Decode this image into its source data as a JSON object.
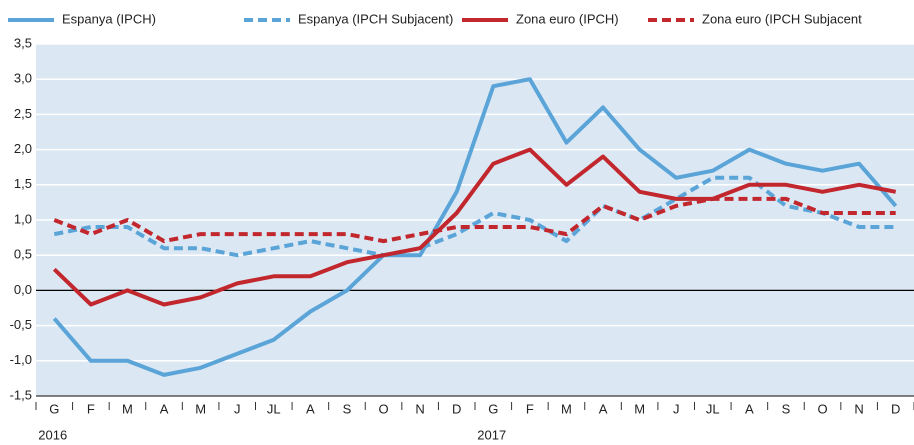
{
  "chart_data": {
    "type": "line",
    "categories": [
      "G",
      "F",
      "M",
      "A",
      "M",
      "J",
      "JL",
      "A",
      "S",
      "O",
      "N",
      "D",
      "G",
      "F",
      "M",
      "A",
      "M",
      "J",
      "JL",
      "A",
      "S",
      "O",
      "N",
      "D"
    ],
    "years": [
      "2016",
      "2017"
    ],
    "ylim": [
      -1.5,
      3.5
    ],
    "yticks": [
      {
        "value": -1.5,
        "label": "-1,5"
      },
      {
        "value": -1,
        "label": "-1,0"
      },
      {
        "value": -0.5,
        "label": "-0,5"
      },
      {
        "value": 0,
        "label": "0,0"
      },
      {
        "value": 0.5,
        "label": "0,5"
      },
      {
        "value": 1,
        "label": "1,0"
      },
      {
        "value": 1.5,
        "label": "1,5"
      },
      {
        "value": 2,
        "label": "2,0"
      },
      {
        "value": 2.5,
        "label": "2,5"
      },
      {
        "value": 3,
        "label": "3,0"
      },
      {
        "value": 3.5,
        "label": "3,5"
      }
    ],
    "grid": true,
    "series": [
      {
        "name": "Espanya (IPCH)",
        "color": "#5aa4d8",
        "line_style": "solid",
        "values": [
          -0.4,
          -1.0,
          -1.0,
          -1.2,
          -1.1,
          -0.9,
          -0.7,
          -0.3,
          0.0,
          0.5,
          0.5,
          1.4,
          2.9,
          3.0,
          2.1,
          2.6,
          2.0,
          1.6,
          1.7,
          2.0,
          1.8,
          1.7,
          1.8,
          1.2
        ]
      },
      {
        "name": "Espanya (IPCH Subjacent)",
        "color": "#5aa4d8",
        "line_style": "dashed",
        "values": [
          0.8,
          0.9,
          0.9,
          0.6,
          0.6,
          0.5,
          0.6,
          0.7,
          0.6,
          0.5,
          0.6,
          0.8,
          1.1,
          1.0,
          0.7,
          1.2,
          1.0,
          1.3,
          1.6,
          1.6,
          1.2,
          1.1,
          0.9,
          0.9
        ]
      },
      {
        "name": "Zona euro (IPCH)",
        "color": "#c1272d",
        "line_style": "solid",
        "values": [
          0.3,
          -0.2,
          0.0,
          -0.2,
          -0.1,
          0.1,
          0.2,
          0.2,
          0.4,
          0.5,
          0.6,
          1.1,
          1.8,
          2.0,
          1.5,
          1.9,
          1.4,
          1.3,
          1.3,
          1.5,
          1.5,
          1.4,
          1.5,
          1.4
        ]
      },
      {
        "name": "Zona euro (IPCH Subjacent",
        "color": "#c1272d",
        "line_style": "dashed",
        "values": [
          1.0,
          0.8,
          1.0,
          0.7,
          0.8,
          0.8,
          0.8,
          0.8,
          0.8,
          0.7,
          0.8,
          0.9,
          0.9,
          0.9,
          0.8,
          1.2,
          1.0,
          1.2,
          1.3,
          1.3,
          1.3,
          1.1,
          1.1,
          1.1
        ]
      }
    ]
  }
}
